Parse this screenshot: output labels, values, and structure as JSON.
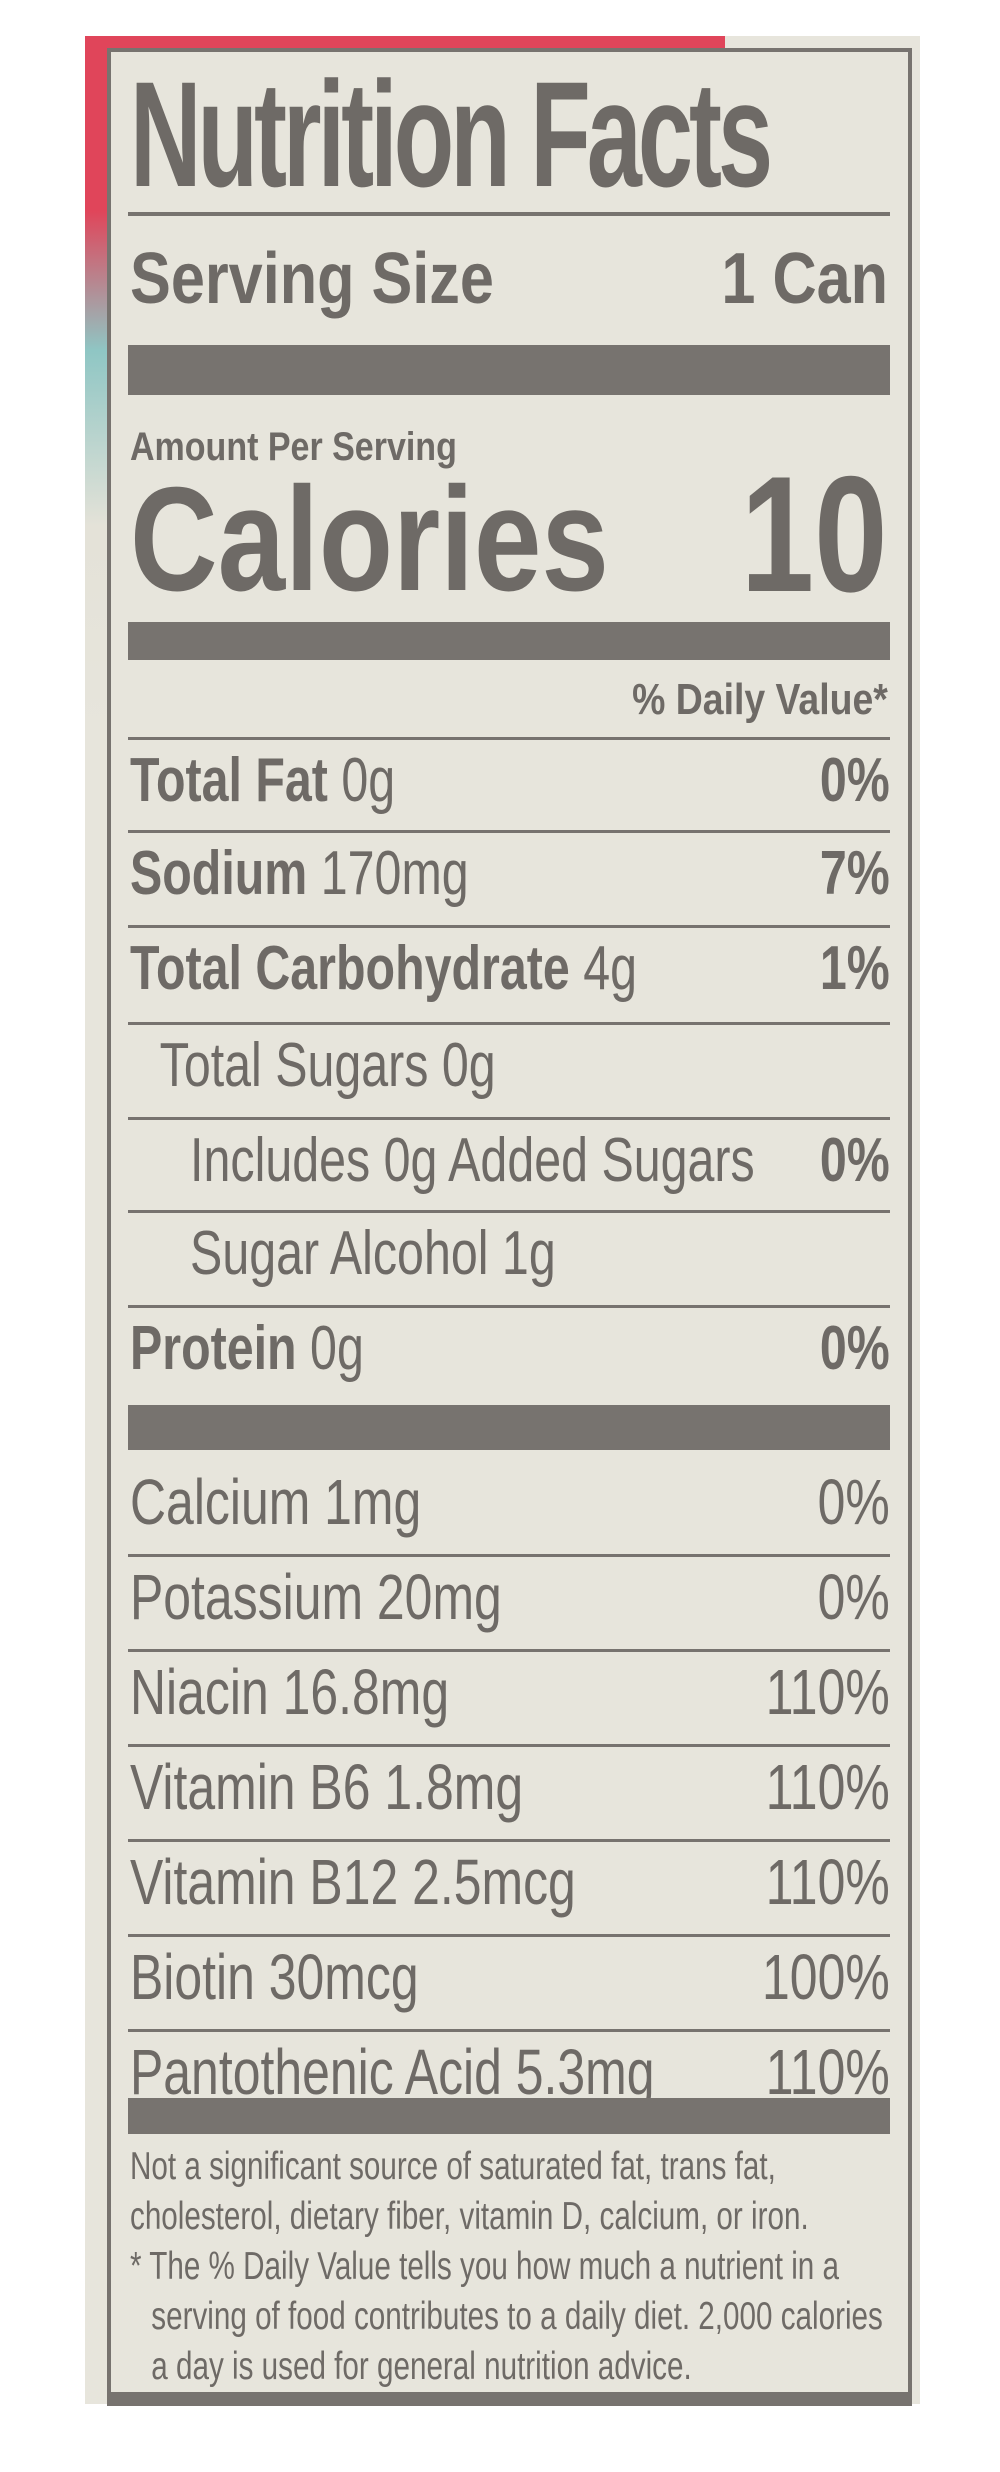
{
  "title": "Nutrition Facts",
  "serving": {
    "label": "Serving Size",
    "value": "1 Can"
  },
  "amount_per_serving": "Amount Per Serving",
  "calories": {
    "label": "Calories",
    "value": "10"
  },
  "daily_value_header": "% Daily Value*",
  "nutrients": [
    {
      "name": "Total Fat",
      "amount": "0g",
      "dv": "0%"
    },
    {
      "name": "Sodium",
      "amount": "170mg",
      "dv": "7%"
    },
    {
      "name": "Total Carbohydrate",
      "amount": "4g",
      "dv": "1%"
    },
    {
      "name": "Total Sugars 0g",
      "dv": ""
    },
    {
      "name": "Includes 0g Added Sugars",
      "dv": "0%"
    },
    {
      "name": "Sugar Alcohol 1g",
      "dv": ""
    },
    {
      "name": "Protein",
      "amount": "0g",
      "dv": "0%"
    }
  ],
  "vitamins": [
    {
      "name": "Calcium 1mg",
      "dv": "0%"
    },
    {
      "name": "Potassium 20mg",
      "dv": "0%"
    },
    {
      "name": "Niacin 16.8mg",
      "dv": "110%"
    },
    {
      "name": "Vitamin B6 1.8mg",
      "dv": "110%"
    },
    {
      "name": "Vitamin B12 2.5mcg",
      "dv": "110%"
    },
    {
      "name": "Biotin 30mcg",
      "dv": "100%"
    },
    {
      "name": "Pantothenic Acid 5.3mg",
      "dv": "110%"
    }
  ],
  "footnote": {
    "not_significant": "Not a significant source of saturated fat, trans fat, cholesterol, dietary fiber, vitamin D, calcium, or iron.",
    "dv_note": "* The % Daily Value tells you how much a nutrient in a serving of food contributes to a daily diet. 2,000 calories a day is used for general nutrition advice."
  },
  "colors": {
    "ink": "#6e6a66",
    "panel": "#e7e5dc",
    "accent": "#e0455a"
  }
}
